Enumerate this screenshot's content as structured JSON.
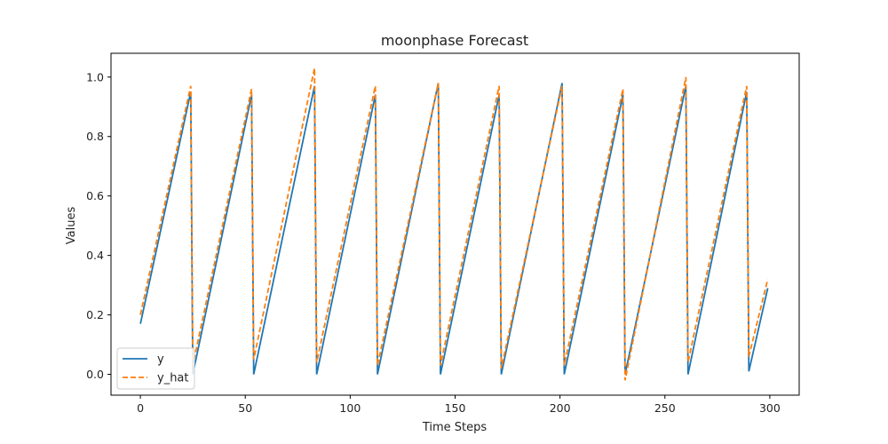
{
  "chart_data": {
    "type": "line",
    "title": "moonphase Forecast",
    "xlabel": "Time Steps",
    "ylabel": "Values",
    "xlim": [
      -14,
      314
    ],
    "ylim": [
      -0.07,
      1.08
    ],
    "xticks": [
      0,
      50,
      100,
      150,
      200,
      250,
      300
    ],
    "yticks": [
      0.0,
      0.2,
      0.4,
      0.6,
      0.8,
      1.0
    ],
    "xtick_labels": [
      "0",
      "50",
      "100",
      "150",
      "200",
      "250",
      "300"
    ],
    "ytick_labels": [
      "0.0",
      "0.2",
      "0.4",
      "0.6",
      "0.8",
      "1.0"
    ],
    "legend_position": "lower-left",
    "series": [
      {
        "name": "y",
        "color": "#1f77b4",
        "style": "solid",
        "points": [
          [
            0,
            0.17
          ],
          [
            24,
            0.95
          ],
          [
            25,
            0.0
          ],
          [
            53,
            0.94
          ],
          [
            54,
            0.0
          ],
          [
            83,
            0.97
          ],
          [
            84,
            0.0
          ],
          [
            112,
            0.94
          ],
          [
            113,
            0.0
          ],
          [
            142,
            0.98
          ],
          [
            143,
            0.0
          ],
          [
            171,
            0.94
          ],
          [
            172,
            0.0
          ],
          [
            201,
            0.98
          ],
          [
            202,
            0.0
          ],
          [
            230,
            0.94
          ],
          [
            231,
            0.0
          ],
          [
            260,
            0.97
          ],
          [
            261,
            0.0
          ],
          [
            289,
            0.95
          ],
          [
            290,
            0.01
          ],
          [
            299,
            0.29
          ]
        ]
      },
      {
        "name": "y_hat",
        "color": "#ff7f0e",
        "style": "dashed",
        "points": [
          [
            0,
            0.2
          ],
          [
            24,
            0.97
          ],
          [
            25,
            0.03
          ],
          [
            53,
            0.96
          ],
          [
            54,
            0.05
          ],
          [
            83,
            1.03
          ],
          [
            84,
            0.04
          ],
          [
            112,
            0.97
          ],
          [
            113,
            0.03
          ],
          [
            142,
            0.98
          ],
          [
            143,
            0.03
          ],
          [
            171,
            0.97
          ],
          [
            172,
            0.02
          ],
          [
            201,
            0.97
          ],
          [
            202,
            0.03
          ],
          [
            230,
            0.96
          ],
          [
            231,
            -0.02
          ],
          [
            260,
            1.0
          ],
          [
            261,
            0.04
          ],
          [
            289,
            0.97
          ],
          [
            290,
            0.06
          ],
          [
            299,
            0.32
          ]
        ]
      }
    ]
  }
}
